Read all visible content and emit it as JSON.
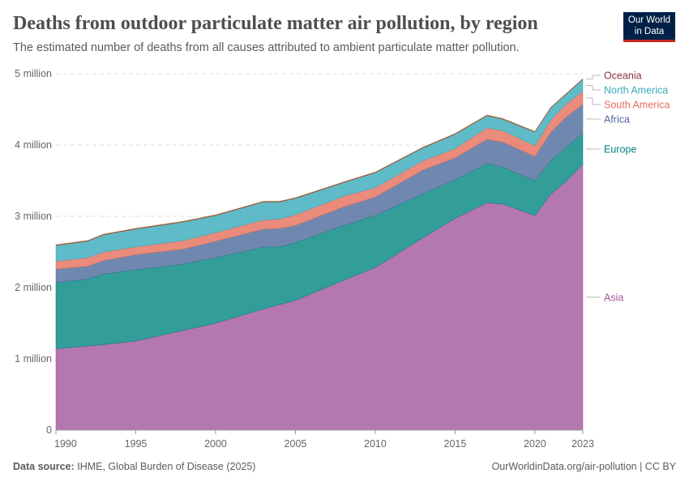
{
  "header": {
    "title": "Deaths from outdoor particulate matter air pollution, by region",
    "subtitle": "The estimated number of deaths from all causes attributed to ambient particulate matter pollution.",
    "logo": "Our World in Data"
  },
  "footer": {
    "source_label": "Data source:",
    "source": "IHME, Global Burden of Disease (2025)",
    "url": "OurWorldinData.org/air-pollution | CC BY"
  },
  "chart_data": {
    "type": "area",
    "stacked": true,
    "unit": "deaths",
    "ylim": [
      0,
      5000000
    ],
    "yticks": [
      {
        "v": 0,
        "label": "0"
      },
      {
        "v": 1000000,
        "label": "1 million"
      },
      {
        "v": 2000000,
        "label": "2 million"
      },
      {
        "v": 3000000,
        "label": "3 million"
      },
      {
        "v": 4000000,
        "label": "4 million"
      },
      {
        "v": 5000000,
        "label": "5 million"
      }
    ],
    "xticks": [
      1990,
      1995,
      2000,
      2005,
      2010,
      2015,
      2020,
      2023
    ],
    "grid": "horizontal dashed",
    "legend": "right, inline labels",
    "x": [
      1990,
      1992,
      1993,
      1995,
      1998,
      2000,
      2003,
      2004,
      2005,
      2008,
      2010,
      2013,
      2015,
      2017,
      2018,
      2020,
      2021,
      2022,
      2023
    ],
    "series": [
      {
        "name": "Asia",
        "color": "#a2559c",
        "label_color": "#a2559c",
        "values": [
          1140000,
          1180000,
          1200000,
          1250000,
          1400000,
          1500000,
          1700000,
          1760000,
          1820000,
          2100000,
          2280000,
          2700000,
          2970000,
          3190000,
          3170000,
          3010000,
          3310000,
          3500000,
          3730000
        ]
      },
      {
        "name": "Europe",
        "color": "#00847e",
        "label_color": "#00847e",
        "values": [
          930000,
          940000,
          990000,
          1000000,
          930000,
          920000,
          870000,
          810000,
          810000,
          770000,
          730000,
          620000,
          540000,
          550000,
          520000,
          490000,
          470000,
          480000,
          430000
        ]
      },
      {
        "name": "Africa",
        "color": "#4c6a9c",
        "label_color": "#4c6a9c",
        "values": [
          190000,
          180000,
          190000,
          210000,
          210000,
          230000,
          250000,
          260000,
          240000,
          260000,
          260000,
          330000,
          310000,
          340000,
          350000,
          340000,
          400000,
          420000,
          410000
        ]
      },
      {
        "name": "South America",
        "color": "#e56e5a",
        "label_color": "#e56e5a",
        "values": [
          110000,
          120000,
          120000,
          110000,
          120000,
          120000,
          130000,
          130000,
          150000,
          150000,
          130000,
          130000,
          130000,
          160000,
          160000,
          150000,
          170000,
          180000,
          180000
        ]
      },
      {
        "name": "North America",
        "color": "#38aaba",
        "label_color": "#38aaba",
        "values": [
          220000,
          230000,
          240000,
          250000,
          260000,
          240000,
          250000,
          240000,
          230000,
          190000,
          210000,
          180000,
          200000,
          170000,
          160000,
          190000,
          170000,
          140000,
          170000
        ]
      },
      {
        "name": "Oceania",
        "color": "#9a5129",
        "label_color": "#883039",
        "values": [
          10000,
          10000,
          10000,
          10000,
          10000,
          10000,
          10000,
          10000,
          10000,
          10000,
          10000,
          10000,
          10000,
          10000,
          10000,
          10000,
          10000,
          10000,
          10000
        ]
      }
    ]
  }
}
